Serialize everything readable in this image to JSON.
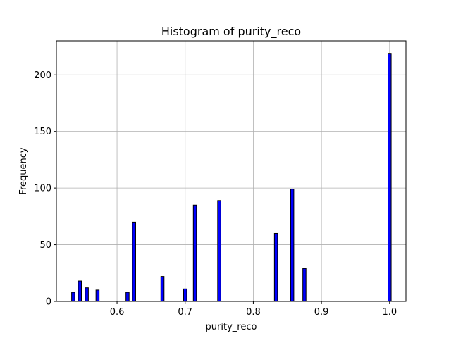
{
  "chart_data": {
    "type": "bar",
    "title": "Histogram of purity_reco",
    "xlabel": "purity_reco",
    "ylabel": "Frequency",
    "xlim": [
      0.511,
      1.024
    ],
    "ylim": [
      0,
      230
    ],
    "x_ticks": [
      "0.6",
      "0.7",
      "0.8",
      "0.9",
      "1.0"
    ],
    "y_ticks": [
      "0",
      "50",
      "100",
      "150",
      "200"
    ],
    "grid": true,
    "bar_color": "#0000ff",
    "edge_color": "#000000",
    "bin_width": 0.00467,
    "bars": [
      {
        "x": 0.5357,
        "value": 8
      },
      {
        "x": 0.5454,
        "value": 18
      },
      {
        "x": 0.5556,
        "value": 12
      },
      {
        "x": 0.5714,
        "value": 10
      },
      {
        "x": 0.6154,
        "value": 8
      },
      {
        "x": 0.625,
        "value": 70
      },
      {
        "x": 0.6667,
        "value": 22
      },
      {
        "x": 0.7,
        "value": 11
      },
      {
        "x": 0.7143,
        "value": 85
      },
      {
        "x": 0.75,
        "value": 89
      },
      {
        "x": 0.8333,
        "value": 60
      },
      {
        "x": 0.8571,
        "value": 99
      },
      {
        "x": 0.875,
        "value": 29
      },
      {
        "x": 1.0,
        "value": 219
      }
    ]
  }
}
